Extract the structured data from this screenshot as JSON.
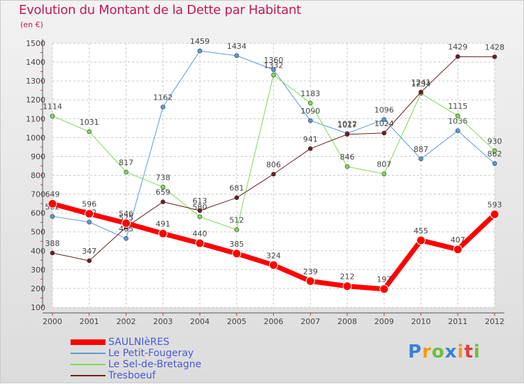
{
  "title": "Evolution du Montant de la Dette par Habitant",
  "unit": "(en €)",
  "logo": "Proxiti",
  "chart_data": {
    "type": "line",
    "title": "Evolution du Montant de la Dette par Habitant",
    "x": [
      "2000",
      "2001",
      "2002",
      "2003",
      "2004",
      "2005",
      "2006",
      "2007",
      "2008",
      "2009",
      "2010",
      "2011",
      "2012"
    ],
    "ylim": [
      100,
      1500
    ],
    "yticks": [
      100,
      200,
      300,
      400,
      500,
      600,
      700,
      800,
      900,
      1000,
      1100,
      1200,
      1300,
      1400,
      1500
    ],
    "grid": true,
    "legend": "bottom-left",
    "series": [
      {
        "name": "Le Petit-Fougeray",
        "color": "#5a9bd5",
        "width": 1,
        "values": [
          582,
          552,
          465,
          1162,
          1459,
          1434,
          1360,
          1090,
          1022,
          1096,
          887,
          1036,
          862
        ]
      },
      {
        "name": "Le Sel-de-Bretagne",
        "color": "#7ed957",
        "width": 1,
        "values": [
          1114,
          1031,
          817,
          738,
          580,
          512,
          1332,
          1183,
          846,
          807,
          1234,
          1115,
          930
        ]
      },
      {
        "name": "Tresboeuf",
        "color": "#6b1f1f",
        "width": 1,
        "values": [
          388,
          347,
          525,
          659,
          613,
          681,
          806,
          941,
          1017,
          1024,
          1241,
          1429,
          1428
        ]
      },
      {
        "name": "SAULNIèRES",
        "color": "#ff0000",
        "width": 7,
        "values": [
          649,
          596,
          546,
          491,
          440,
          385,
          324,
          239,
          212,
          197,
          455,
          407,
          593
        ]
      }
    ]
  }
}
